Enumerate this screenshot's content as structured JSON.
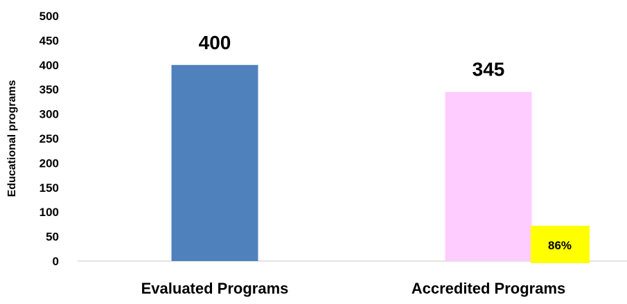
{
  "chart_data": {
    "type": "bar",
    "categories": [
      "Evaluated Programs",
      "Accredited Programs"
    ],
    "values": [
      400,
      345
    ],
    "data_labels": [
      "400",
      "345"
    ],
    "bar_colors": [
      "#4f81bd",
      "#ffccff"
    ],
    "ylabel": "Educational programs",
    "xlabel": "",
    "ylim": [
      0,
      500
    ],
    "yticks": [
      0,
      50,
      100,
      150,
      200,
      250,
      300,
      350,
      400,
      450,
      500
    ],
    "grid": false,
    "annotation": {
      "text": "86%",
      "background": "#ffff00"
    }
  }
}
